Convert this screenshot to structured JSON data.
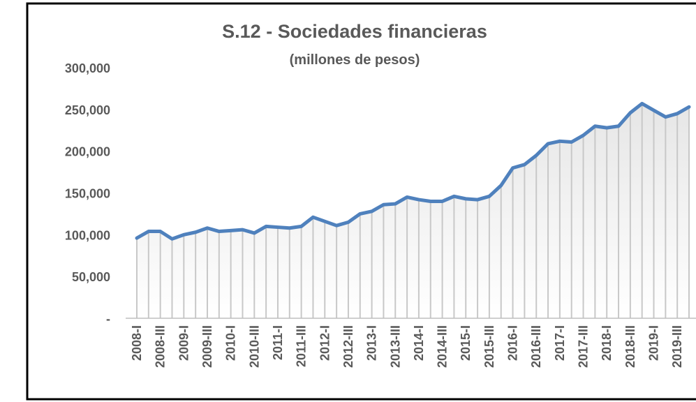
{
  "chart_data": {
    "type": "line",
    "title": "S.12 - Sociedades financieras",
    "subtitle": "(millones de pesos)",
    "categories": [
      "2008-I",
      null,
      "2008-III",
      null,
      "2009-I",
      null,
      "2009-III",
      null,
      "2010-I",
      null,
      "2010-III",
      null,
      "2011-I",
      null,
      "2011-III",
      null,
      "2012-I",
      null,
      "2012-III",
      null,
      "2013-I",
      null,
      "2013-III",
      null,
      "2014-I",
      null,
      "2014-III",
      null,
      "2015-I",
      null,
      "2015-III",
      null,
      "2016-I",
      null,
      "2016-III",
      null,
      "2017-I",
      null,
      "2017-III",
      null,
      "2018-I",
      null,
      "2018-III",
      null,
      "2019-I",
      null,
      "2019-III",
      null
    ],
    "values": [
      96000,
      104000,
      104000,
      95000,
      100000,
      103000,
      108000,
      104000,
      105000,
      106000,
      102000,
      110000,
      109000,
      108000,
      110000,
      121000,
      116000,
      111000,
      115000,
      125000,
      128000,
      136000,
      137000,
      145000,
      142000,
      140000,
      140000,
      146000,
      143000,
      142000,
      146000,
      159000,
      180000,
      184000,
      195000,
      209000,
      212000,
      211000,
      219000,
      230000,
      228000,
      230000,
      246000,
      257000,
      249000,
      241000,
      245000,
      253000
    ],
    "color": "#4f81bd",
    "ylim": [
      0,
      300000
    ],
    "yticks": [
      {
        "value": 0,
        "label": "-"
      },
      {
        "value": 50000,
        "label": "50,000"
      },
      {
        "value": 100000,
        "label": "100,000"
      },
      {
        "value": 150000,
        "label": "150,000"
      },
      {
        "value": 200000,
        "label": "200,000"
      },
      {
        "value": 250000,
        "label": "250,000"
      },
      {
        "value": 300000,
        "label": "300,000"
      }
    ],
    "grid": false
  }
}
